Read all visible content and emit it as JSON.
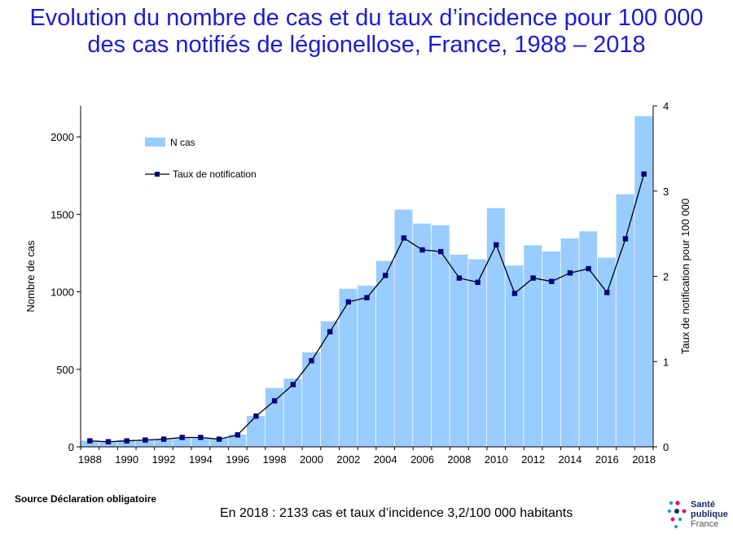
{
  "title_line1": "Evolution du nombre de cas et du taux d’incidence pour 100 000",
  "title_line2": "des cas notifiés de légionellose, France, 1988 – 2018",
  "source": "Source Déclaration obligatoire",
  "footnote": "En 2018 : 2133 cas  et  taux d’incidence 3,2/100 000 habitants",
  "logo": {
    "line1": "Santé",
    "line2": "publique",
    "line3": "France"
  },
  "colors": {
    "title": "#1c1ccf",
    "bars": "#99ccff",
    "line": "#000000",
    "markers": "#000080"
  },
  "chart_data": {
    "type": "bar",
    "x": [
      1988,
      1989,
      1990,
      1991,
      1992,
      1993,
      1994,
      1995,
      1996,
      1997,
      1998,
      1999,
      2000,
      2001,
      2002,
      2003,
      2004,
      2005,
      2006,
      2007,
      2008,
      2009,
      2010,
      2011,
      2012,
      2013,
      2014,
      2015,
      2016,
      2017,
      2018
    ],
    "xticks": [
      "1988",
      "1990",
      "1992",
      "1994",
      "1996",
      "1998",
      "2000",
      "2002",
      "2004",
      "2006",
      "2008",
      "2010",
      "2012",
      "2014",
      "2016",
      "2018"
    ],
    "series": [
      {
        "name": "N cas",
        "type": "bar",
        "axis": "left",
        "values": [
          40,
          35,
          45,
          45,
          50,
          60,
          60,
          55,
          80,
          200,
          380,
          440,
          610,
          810,
          1020,
          1040,
          1200,
          1530,
          1440,
          1430,
          1240,
          1210,
          1540,
          1170,
          1300,
          1260,
          1345,
          1390,
          1220,
          1630,
          2133
        ]
      },
      {
        "name": "Taux de notification",
        "type": "line",
        "axis": "right",
        "values": [
          0.07,
          0.06,
          0.07,
          0.08,
          0.09,
          0.11,
          0.11,
          0.09,
          0.14,
          0.36,
          0.54,
          0.73,
          1.01,
          1.35,
          1.7,
          1.75,
          2.01,
          2.45,
          2.31,
          2.29,
          1.98,
          1.93,
          2.37,
          1.8,
          1.98,
          1.94,
          2.04,
          2.09,
          1.81,
          2.44,
          3.2
        ]
      }
    ],
    "ylabel": "Nombre de cas",
    "y2label": "Taux de notification pour 100 000",
    "ylim": [
      0,
      2200
    ],
    "yticks": [
      0,
      500,
      1000,
      1500,
      2000
    ],
    "y2lim": [
      0,
      4
    ],
    "y2ticks": [
      0,
      1,
      2,
      3,
      4
    ],
    "legend_position": "top-left",
    "grid": false
  }
}
